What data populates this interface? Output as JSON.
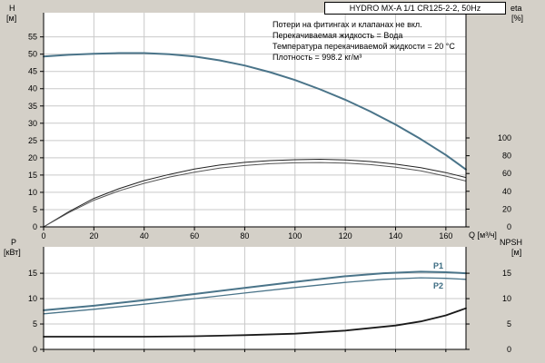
{
  "chart_data": {
    "type": "line",
    "title": "HYDRO MX-A 1/1 CR125-2-2, 50Hz",
    "notes": [
      "Потери на фитингах и клапанах не вкл.",
      "Перекачиваемая жидкость = Вода",
      "Температура перекачиваемой жидкости = 20 °C",
      "Плотность = 998.2 кг/м³"
    ],
    "x_axis": {
      "label": "Q [м³/ч]",
      "ticks": [
        0,
        20,
        40,
        60,
        80,
        100,
        120,
        140,
        160
      ],
      "range": [
        0,
        168
      ]
    },
    "top_panel": {
      "y_left": {
        "name": "H",
        "unit": "[м]",
        "ticks": [
          0,
          5,
          10,
          15,
          20,
          25,
          30,
          35,
          40,
          45,
          50,
          55
        ],
        "range": [
          0,
          62
        ]
      },
      "y_right": {
        "name": "eta",
        "unit": "[%]",
        "ticks": [
          0,
          20,
          40,
          60,
          80,
          100
        ],
        "range": [
          0,
          100
        ]
      },
      "series": [
        {
          "name": "head-curve",
          "axis": "left",
          "color": "#4a7489",
          "width": 2,
          "points": [
            [
              0,
              49.3
            ],
            [
              10,
              49.8
            ],
            [
              20,
              50.1
            ],
            [
              30,
              50.3
            ],
            [
              40,
              50.3
            ],
            [
              50,
              50.0
            ],
            [
              60,
              49.3
            ],
            [
              70,
              48.2
            ],
            [
              80,
              46.7
            ],
            [
              90,
              44.8
            ],
            [
              100,
              42.5
            ],
            [
              110,
              39.8
            ],
            [
              120,
              36.8
            ],
            [
              130,
              33.4
            ],
            [
              140,
              29.6
            ],
            [
              150,
              25.4
            ],
            [
              160,
              20.8
            ],
            [
              168,
              16.6
            ]
          ]
        },
        {
          "name": "eta-total",
          "axis": "right",
          "color": "#222222",
          "width": 1,
          "points": [
            [
              0,
              0
            ],
            [
              10,
              17
            ],
            [
              20,
              32
            ],
            [
              30,
              43
            ],
            [
              40,
              52
            ],
            [
              50,
              59
            ],
            [
              60,
              65
            ],
            [
              70,
              69.5
            ],
            [
              80,
              72.5
            ],
            [
              90,
              74.5
            ],
            [
              100,
              75.5
            ],
            [
              110,
              76
            ],
            [
              120,
              75.3
            ],
            [
              130,
              73.5
            ],
            [
              140,
              70.5
            ],
            [
              150,
              66.5
            ],
            [
              160,
              61
            ],
            [
              168,
              55.5
            ]
          ]
        },
        {
          "name": "eta-pump",
          "axis": "right",
          "color": "#555555",
          "width": 1,
          "points": [
            [
              0,
              0
            ],
            [
              10,
              16
            ],
            [
              20,
              30
            ],
            [
              30,
              40.5
            ],
            [
              40,
              49
            ],
            [
              50,
              56
            ],
            [
              60,
              61.5
            ],
            [
              70,
              66
            ],
            [
              80,
              69
            ],
            [
              90,
              71
            ],
            [
              100,
              72
            ],
            [
              110,
              72.3
            ],
            [
              120,
              71.7
            ],
            [
              130,
              70
            ],
            [
              140,
              67
            ],
            [
              150,
              63
            ],
            [
              160,
              57
            ],
            [
              168,
              51.5
            ]
          ]
        }
      ]
    },
    "bottom_panel": {
      "y_left": {
        "name": "P",
        "unit": "[кВт]",
        "ticks": [
          0,
          5,
          10,
          15
        ],
        "range": [
          0,
          20.2
        ]
      },
      "y_right": {
        "name": "NPSH",
        "unit": "[м]",
        "ticks": [
          0,
          5,
          10,
          15
        ],
        "range": [
          0,
          20.2
        ]
      },
      "series": [
        {
          "name": "p1-curve",
          "label": "P1",
          "axis": "left",
          "color": "#4a7489",
          "width": 2,
          "points": [
            [
              0,
              7.7
            ],
            [
              20,
              8.6
            ],
            [
              40,
              9.7
            ],
            [
              60,
              10.9
            ],
            [
              80,
              12.1
            ],
            [
              100,
              13.3
            ],
            [
              120,
              14.4
            ],
            [
              135,
              15.0
            ],
            [
              150,
              15.3
            ],
            [
              160,
              15.2
            ],
            [
              168,
              15.0
            ]
          ]
        },
        {
          "name": "p2-curve",
          "label": "P2",
          "axis": "left",
          "color": "#4a7489",
          "width": 1.3,
          "points": [
            [
              0,
              7.0
            ],
            [
              20,
              7.9
            ],
            [
              40,
              8.9
            ],
            [
              60,
              10.0
            ],
            [
              80,
              11.1
            ],
            [
              100,
              12.2
            ],
            [
              120,
              13.2
            ],
            [
              135,
              13.8
            ],
            [
              150,
              14.1
            ],
            [
              160,
              14.0
            ],
            [
              168,
              13.8
            ]
          ]
        },
        {
          "name": "npsh-curve",
          "axis": "right",
          "color": "#1a1a1a",
          "width": 1.8,
          "points": [
            [
              0,
              2.5
            ],
            [
              20,
              2.5
            ],
            [
              40,
              2.5
            ],
            [
              60,
              2.6
            ],
            [
              80,
              2.8
            ],
            [
              100,
              3.1
            ],
            [
              120,
              3.7
            ],
            [
              140,
              4.7
            ],
            [
              150,
              5.5
            ],
            [
              160,
              6.7
            ],
            [
              168,
              8.1
            ]
          ]
        }
      ]
    }
  }
}
